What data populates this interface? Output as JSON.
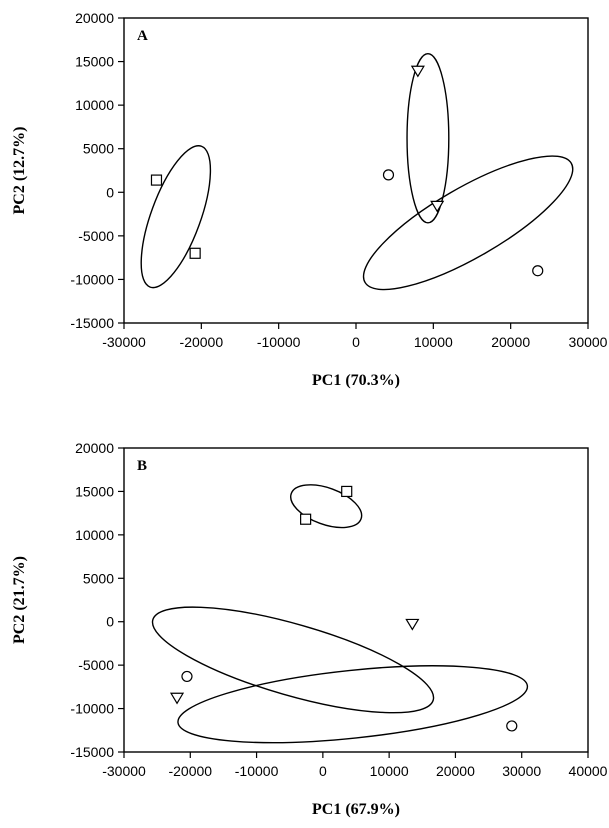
{
  "chart_data": [
    {
      "type": "scatter",
      "panel_label": "A",
      "xlabel": "PC1 (70.3%)",
      "ylabel": "PC2 (12.7%)",
      "xlim": [
        -30000,
        30000
      ],
      "ylim": [
        -15000,
        20000
      ],
      "xticks": [
        -30000,
        -20000,
        -10000,
        0,
        10000,
        20000,
        30000
      ],
      "yticks": [
        -15000,
        -10000,
        -5000,
        0,
        5000,
        10000,
        15000,
        20000
      ],
      "grid": false,
      "series": [
        {
          "marker": "square",
          "points": [
            [
              -25800,
              1400
            ],
            [
              -20800,
              -7000
            ]
          ]
        },
        {
          "marker": "triangle",
          "points": [
            [
              8000,
              14000
            ],
            [
              10500,
              -1500
            ]
          ]
        },
        {
          "marker": "circle",
          "points": [
            [
              4200,
              2000
            ],
            [
              23500,
              -9000
            ]
          ]
        }
      ],
      "ellipses": [
        {
          "cx": -23300,
          "cy": -2800,
          "rx": 3200,
          "ry": 8600,
          "angle": 20
        },
        {
          "cx": 9300,
          "cy": 6200,
          "rx": 2700,
          "ry": 9700,
          "angle": 0
        },
        {
          "cx": 14500,
          "cy": -3500,
          "rx": 15400,
          "ry": 4000,
          "angle": -30
        }
      ]
    },
    {
      "type": "scatter",
      "panel_label": "B",
      "xlabel": "PC1 (67.9%)",
      "ylabel": "PC2 (21.7%)",
      "xlim": [
        -30000,
        40000
      ],
      "ylim": [
        -15000,
        20000
      ],
      "xticks": [
        -30000,
        -20000,
        -10000,
        0,
        10000,
        20000,
        30000,
        40000
      ],
      "yticks": [
        -15000,
        -10000,
        -5000,
        0,
        5000,
        10000,
        15000,
        20000
      ],
      "grid": false,
      "series": [
        {
          "marker": "square",
          "points": [
            [
              -2600,
              11800
            ],
            [
              3600,
              15000
            ]
          ]
        },
        {
          "marker": "triangle",
          "points": [
            [
              13500,
              -200
            ],
            [
              -22000,
              -8700
            ]
          ]
        },
        {
          "marker": "circle",
          "points": [
            [
              -20500,
              -6300
            ],
            [
              28500,
              -12000
            ]
          ]
        }
      ],
      "ellipses": [
        {
          "cx": 500,
          "cy": 13300,
          "rx": 5600,
          "ry": 2100,
          "angle": 20
        },
        {
          "cx": -4500,
          "cy": -4400,
          "rx": 22000,
          "ry": 4100,
          "angle": 16
        },
        {
          "cx": 4500,
          "cy": -9500,
          "rx": 26500,
          "ry": 3900,
          "angle": -6
        }
      ]
    }
  ]
}
